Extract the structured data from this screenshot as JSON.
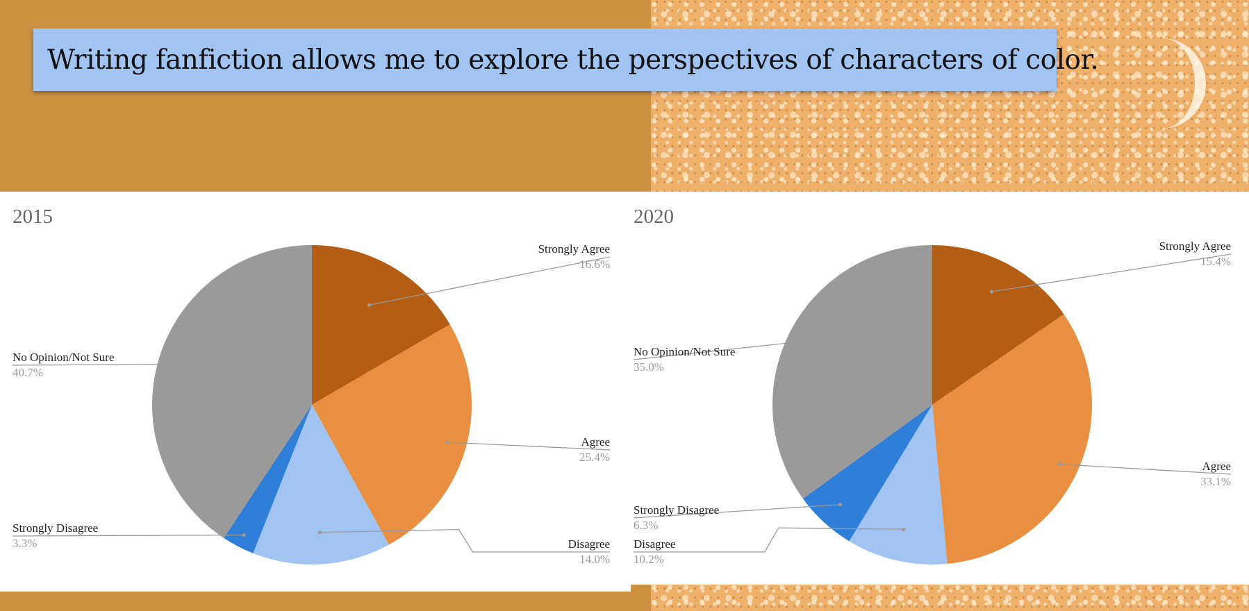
{
  "title": "Writing fanfiction allows me to explore the perspectives of characters of color.",
  "chart_data": [
    {
      "type": "pie",
      "title": "2015",
      "slices": [
        {
          "label": "Strongly Agree",
          "value": 16.6,
          "pct": "16.6%",
          "color": "#b45d15"
        },
        {
          "label": "Agree",
          "value": 25.4,
          "pct": "25.4%",
          "color": "#e88f41"
        },
        {
          "label": "Disagree",
          "value": 14.0,
          "pct": "14.0%",
          "color": "#a2c4f2"
        },
        {
          "label": "Strongly Disagree",
          "value": 3.3,
          "pct": "3.3%",
          "color": "#2f7ed8"
        },
        {
          "label": "No Opinion/Not Sure",
          "value": 40.7,
          "pct": "40.7%",
          "color": "#9a9a9a"
        }
      ]
    },
    {
      "type": "pie",
      "title": "2020",
      "slices": [
        {
          "label": "Strongly Agree",
          "value": 15.4,
          "pct": "15.4%",
          "color": "#b45d15"
        },
        {
          "label": "Agree",
          "value": 33.1,
          "pct": "33.1%",
          "color": "#e88f41"
        },
        {
          "label": "Disagree",
          "value": 10.2,
          "pct": "10.2%",
          "color": "#a2c4f2"
        },
        {
          "label": "Strongly Disagree",
          "value": 6.3,
          "pct": "6.3%",
          "color": "#2f7ed8"
        },
        {
          "label": "No Opinion/Not Sure",
          "value": 35.0,
          "pct": "35.0%",
          "color": "#9a9a9a"
        }
      ]
    }
  ]
}
